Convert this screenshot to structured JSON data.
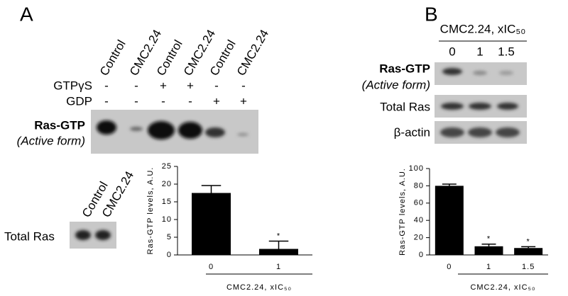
{
  "panel_a": {
    "label": "A",
    "lanes": [
      "Control",
      "CMC2.24",
      "Control",
      "CMC2.24",
      "Control",
      "CMC2.24"
    ],
    "treatments": [
      {
        "name": "GTPγS",
        "marks": [
          "-",
          "-",
          "+",
          "+",
          "-",
          "-"
        ]
      },
      {
        "name": "GDP",
        "marks": [
          "-",
          "-",
          "-",
          "-",
          "+",
          "+"
        ]
      }
    ],
    "blot_label": "Ras-GTP",
    "blot_sublabel": "(Active form)",
    "lower_lanes": [
      "Control",
      "CMC2.24"
    ],
    "lower_blot_label": "Total Ras"
  },
  "panel_b": {
    "label": "B",
    "header": "CMC2.24, xIC₅₀",
    "lanes": [
      "0",
      "1",
      "1.5"
    ],
    "blot_label": "Ras-GTP",
    "blot_sublabel": "(Active form)",
    "total_label": "Total Ras",
    "actin_label": "β-actin"
  },
  "chart_data": [
    {
      "type": "bar",
      "y_label": "Ras-GTP levels, A.U.",
      "x_label": "CMC2.24, xIC₅₀",
      "categories": [
        "0",
        "1"
      ],
      "values": [
        17.5,
        1.7
      ],
      "errors": [
        2.1,
        2.2
      ],
      "significance": [
        null,
        "*"
      ],
      "color": "#000000",
      "ylim": [
        0,
        25
      ],
      "yticks": [
        0,
        5,
        10,
        15,
        20,
        25
      ]
    },
    {
      "type": "bar",
      "y_label": "Ras-GTP levels, A.U.",
      "x_label": "CMC2.24, xIC₅₀",
      "categories": [
        "0",
        "1",
        "1.5"
      ],
      "values": [
        80,
        10,
        8
      ],
      "errors": [
        2,
        2.5,
        1.5
      ],
      "significance": [
        null,
        "*",
        "*"
      ],
      "color": "#000000",
      "ylim": [
        0,
        100
      ],
      "yticks": [
        0,
        20,
        40,
        60,
        80,
        100
      ]
    }
  ]
}
